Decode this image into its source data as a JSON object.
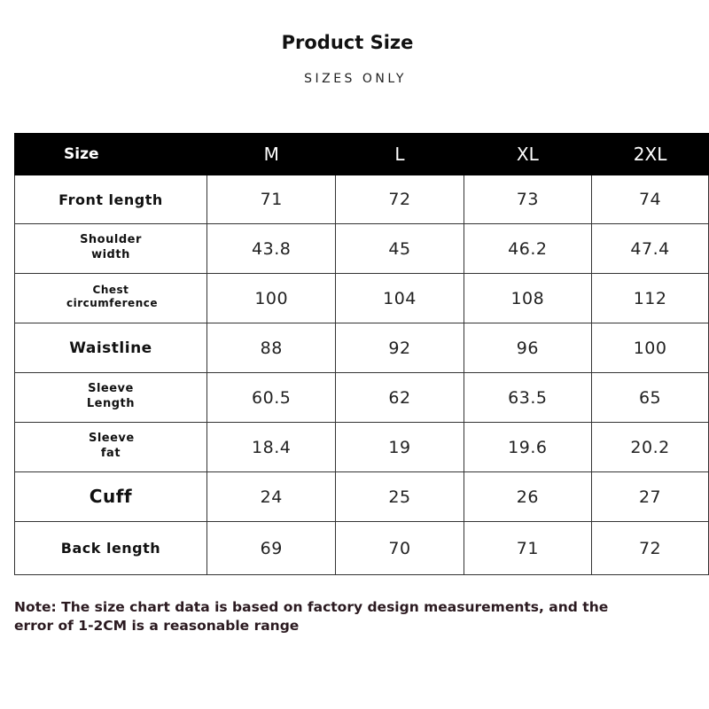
{
  "header": {
    "title": "Product Size",
    "subtitle": "SIZES ONLY"
  },
  "table": {
    "columns": [
      "Size",
      "M",
      "L",
      "XL",
      "2XL"
    ],
    "rows": [
      [
        "Front length",
        71,
        72,
        73,
        74
      ],
      [
        "Shoulder width",
        43.8,
        45,
        46.2,
        47.4
      ],
      [
        "Chest circumference",
        100,
        104,
        108,
        112
      ],
      [
        "Waistline",
        88,
        92,
        96,
        100
      ],
      [
        "Sleeve Length",
        60.5,
        62,
        63.5,
        65
      ],
      [
        "Sleeve fat",
        18.4,
        19,
        19.6,
        20.2
      ],
      [
        "Cuff",
        24,
        25,
        26,
        27
      ],
      [
        "Back length",
        69,
        70,
        71,
        72
      ]
    ]
  },
  "note": "Note: The size chart data is based on factory design measurements, and the error of 1-2CM is a reasonable range"
}
